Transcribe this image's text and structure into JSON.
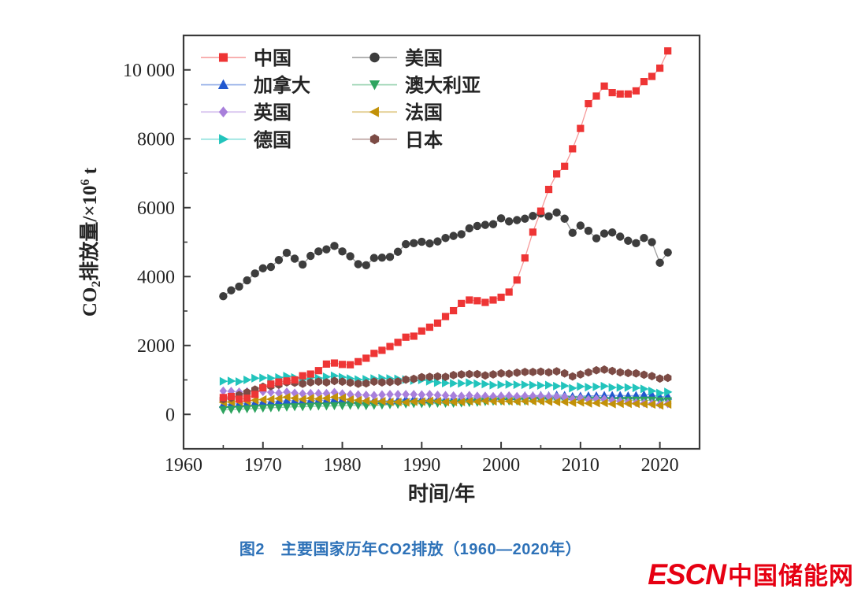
{
  "figure": {
    "caption": "图2　主要国家历年CO2排放（1960—2020年）",
    "caption_color": "#2e72b8",
    "watermark": {
      "latin": "ESCN",
      "chinese": "中国储能网",
      "color": "#e60012"
    }
  },
  "chart_data": {
    "type": "line",
    "title": "",
    "xlabel": "时间/年",
    "ylabel": "CO2排放量/×10^6 t",
    "ylabel_parts": [
      {
        "t": "CO"
      },
      {
        "t": "2",
        "style": "sub"
      },
      {
        "t": "排放量/×10"
      },
      {
        "t": "6",
        "style": "sup"
      },
      {
        "t": " t"
      }
    ],
    "xlim": [
      1960,
      2025
    ],
    "ylim": [
      -1000,
      11000
    ],
    "x_ticks": [
      1960,
      1970,
      1980,
      1990,
      2000,
      2010,
      2020
    ],
    "x_minor_step": 5,
    "y_ticks": [
      0,
      2000,
      4000,
      6000,
      8000,
      10000
    ],
    "y_tick_labels": [
      "0",
      "2000",
      "4000",
      "6000",
      "8000",
      "10 000"
    ],
    "y_minor_step": 1000,
    "grid": false,
    "legend_position": "inside top-left, two columns",
    "axis_color": "#3a3a3a",
    "x": [
      1965,
      1966,
      1967,
      1968,
      1969,
      1970,
      1971,
      1972,
      1973,
      1974,
      1975,
      1976,
      1977,
      1978,
      1979,
      1980,
      1981,
      1982,
      1983,
      1984,
      1985,
      1986,
      1987,
      1988,
      1989,
      1990,
      1991,
      1992,
      1993,
      1994,
      1995,
      1996,
      1997,
      1998,
      1999,
      2000,
      2001,
      2002,
      2003,
      2004,
      2005,
      2006,
      2007,
      2008,
      2009,
      2010,
      2011,
      2012,
      2013,
      2014,
      2015,
      2016,
      2017,
      2018,
      2019,
      2020,
      2021
    ],
    "series": [
      {
        "id": "china",
        "name": "中国",
        "color": "#ee3535",
        "marker": "square",
        "values": [
          490,
          520,
          440,
          470,
          580,
          770,
          880,
          940,
          970,
          1000,
          1120,
          1170,
          1270,
          1460,
          1490,
          1450,
          1440,
          1530,
          1630,
          1770,
          1860,
          1970,
          2090,
          2240,
          2270,
          2420,
          2530,
          2650,
          2840,
          3010,
          3220,
          3320,
          3300,
          3250,
          3320,
          3400,
          3550,
          3900,
          4540,
          5290,
          5900,
          6530,
          6980,
          7200,
          7710,
          8300,
          9020,
          9240,
          9530,
          9340,
          9300,
          9300,
          9390,
          9660,
          9810,
          10050,
          10550
        ]
      },
      {
        "id": "usa",
        "name": "美国",
        "color": "#3d3d3d",
        "marker": "circle",
        "values": [
          3430,
          3600,
          3710,
          3890,
          4090,
          4240,
          4280,
          4480,
          4690,
          4520,
          4350,
          4600,
          4730,
          4790,
          4890,
          4730,
          4590,
          4360,
          4330,
          4540,
          4550,
          4570,
          4720,
          4940,
          4970,
          5010,
          4960,
          5020,
          5120,
          5180,
          5230,
          5400,
          5470,
          5500,
          5520,
          5690,
          5600,
          5640,
          5680,
          5760,
          5830,
          5750,
          5860,
          5680,
          5270,
          5480,
          5330,
          5110,
          5250,
          5280,
          5160,
          5040,
          4970,
          5120,
          5000,
          4400,
          4700
        ]
      },
      {
        "id": "canada",
        "name": "加拿大",
        "color": "#2158cf",
        "marker": "triangle-up",
        "values": [
          290,
          300,
          310,
          330,
          340,
          360,
          360,
          380,
          400,
          400,
          400,
          400,
          410,
          410,
          440,
          440,
          420,
          400,
          390,
          400,
          400,
          390,
          410,
          440,
          450,
          440,
          430,
          440,
          440,
          460,
          470,
          480,
          490,
          500,
          510,
          530,
          520,
          520,
          540,
          540,
          550,
          540,
          560,
          550,
          520,
          530,
          540,
          540,
          550,
          550,
          550,
          540,
          550,
          570,
          570,
          510,
          530
        ]
      },
      {
        "id": "australia",
        "name": "澳大利亚",
        "color": "#2ea45f",
        "marker": "triangle-down",
        "values": [
          130,
          140,
          150,
          160,
          170,
          180,
          190,
          200,
          210,
          220,
          220,
          230,
          240,
          240,
          250,
          250,
          260,
          260,
          250,
          260,
          270,
          280,
          290,
          300,
          310,
          310,
          310,
          320,
          320,
          320,
          330,
          340,
          350,
          370,
          380,
          390,
          390,
          390,
          390,
          410,
          410,
          420,
          420,
          420,
          420,
          410,
          410,
          410,
          400,
          390,
          400,
          410,
          410,
          410,
          410,
          390,
          390
        ]
      },
      {
        "id": "uk",
        "name": "英国",
        "color": "#a87fdb",
        "marker": "diamond",
        "values": [
          680,
          670,
          650,
          660,
          670,
          660,
          640,
          620,
          650,
          620,
          600,
          610,
          610,
          610,
          640,
          600,
          580,
          570,
          560,
          550,
          570,
          580,
          580,
          580,
          580,
          570,
          580,
          560,
          550,
          540,
          530,
          550,
          530,
          530,
          520,
          530,
          540,
          520,
          530,
          530,
          530,
          520,
          510,
          500,
          450,
          470,
          430,
          450,
          440,
          400,
          380,
          350,
          340,
          330,
          320,
          290,
          310
        ]
      },
      {
        "id": "france",
        "name": "法国",
        "color": "#c29108",
        "marker": "triangle-left",
        "values": [
          350,
          360,
          370,
          380,
          410,
          430,
          440,
          460,
          500,
          470,
          440,
          470,
          450,
          470,
          500,
          480,
          430,
          410,
          390,
          370,
          380,
          360,
          360,
          350,
          370,
          370,
          390,
          380,
          360,
          360,
          360,
          380,
          370,
          390,
          380,
          380,
          380,
          370,
          380,
          380,
          380,
          370,
          360,
          360,
          340,
          350,
          320,
          330,
          330,
          300,
          310,
          310,
          310,
          300,
          290,
          260,
          290
        ]
      },
      {
        "id": "germany",
        "name": "德国",
        "color": "#22c4bc",
        "marker": "triangle-right",
        "values": [
          960,
          970,
          950,
          1000,
          1050,
          1060,
          1050,
          1070,
          1110,
          1070,
          1010,
          1070,
          1050,
          1090,
          1120,
          1080,
          1040,
          1010,
          1020,
          1040,
          1050,
          1040,
          1030,
          1010,
          980,
          1000,
          960,
          920,
          910,
          900,
          900,
          920,
          890,
          880,
          850,
          860,
          870,
          860,
          860,
          850,
          840,
          850,
          820,
          830,
          760,
          810,
          790,
          800,
          820,
          780,
          780,
          780,
          770,
          740,
          680,
          620,
          650
        ]
      },
      {
        "id": "japan",
        "name": "日本",
        "color": "#7c4b45",
        "marker": "hexagon",
        "values": [
          440,
          480,
          560,
          640,
          720,
          800,
          820,
          860,
          930,
          920,
          890,
          930,
          950,
          930,
          970,
          950,
          920,
          890,
          900,
          950,
          930,
          940,
          950,
          1010,
          1030,
          1080,
          1090,
          1100,
          1090,
          1140,
          1160,
          1170,
          1170,
          1130,
          1160,
          1190,
          1180,
          1210,
          1230,
          1230,
          1240,
          1220,
          1250,
          1190,
          1100,
          1160,
          1220,
          1280,
          1300,
          1260,
          1220,
          1200,
          1190,
          1150,
          1110,
          1040,
          1060
        ]
      }
    ],
    "legend_columns": [
      [
        0,
        2,
        4,
        6
      ],
      [
        1,
        3,
        5,
        7
      ]
    ],
    "draw_order": [
      1,
      2,
      3,
      4,
      5,
      6,
      7,
      0
    ]
  }
}
